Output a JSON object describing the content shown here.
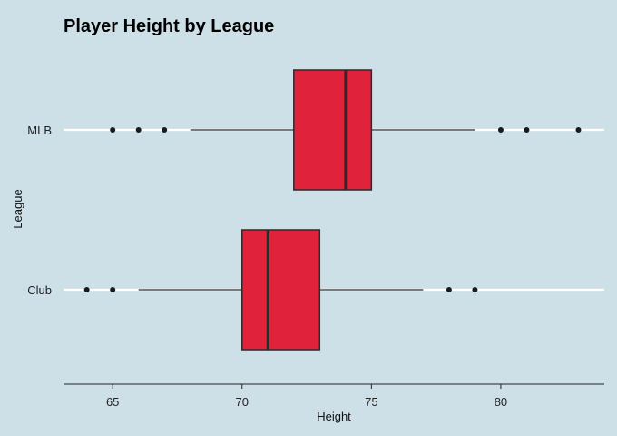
{
  "chart_data": {
    "type": "boxplot",
    "title": "Player Height by League",
    "xlabel": "Height",
    "ylabel": "League",
    "xlim": [
      63.1,
      84
    ],
    "x_ticks": [
      65,
      70,
      75,
      80
    ],
    "grid": "horizontal",
    "categories": [
      "MLB",
      "Club"
    ],
    "boxes": [
      {
        "category": "MLB",
        "whisker_low": 68,
        "q1": 72,
        "median": 74,
        "q3": 75,
        "whisker_high": 79,
        "outliers": [
          65,
          66,
          67,
          80,
          81,
          83
        ]
      },
      {
        "category": "Club",
        "whisker_low": 66,
        "q1": 70,
        "median": 71,
        "q3": 73,
        "whisker_high": 77,
        "outliers": [
          64,
          65,
          78,
          79
        ]
      }
    ],
    "colors": {
      "background": "#cde0e8",
      "box_fill": "#e0233a",
      "box_stroke": "#2b2b2b",
      "grid": "#ffffff",
      "point": "#1a1a1a"
    }
  }
}
